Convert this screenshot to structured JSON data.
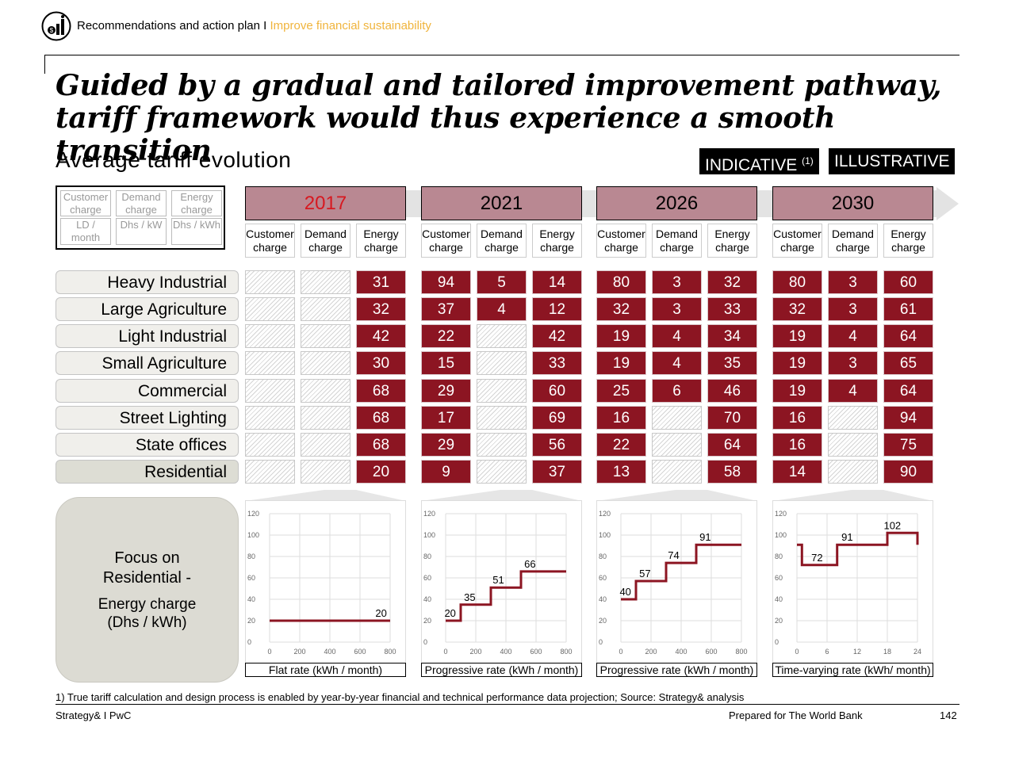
{
  "header": {
    "section": "Recommendations and action plan",
    "separator": "I",
    "topic": "Improve financial sustainability"
  },
  "headline": "Guided by a gradual and tailored improvement pathway, tariff framework would thus experience a smooth transition",
  "subtitle": "Average tariff evolution",
  "tags": {
    "indicative": "INDICATIVE",
    "indicative_note": "(1)",
    "illustrative": "ILLUSTRATIVE"
  },
  "legend": {
    "columns": [
      {
        "name": "Customer charge",
        "unit": "LD / month"
      },
      {
        "name": "Demand charge",
        "unit": "Dhs / kW"
      },
      {
        "name": "Energy charge",
        "unit": "Dhs / kWh"
      }
    ]
  },
  "column_headers": [
    "Customer charge",
    "Demand charge",
    "Energy charge"
  ],
  "colors": {
    "accent": "#8c1522",
    "year_band": "#b98892",
    "highlight_year": "#d71920",
    "header_accent": "#f0b43c"
  },
  "chart_data": [
    {
      "type": "table",
      "title": "Average tariff evolution",
      "years": [
        "2017",
        "2021",
        "2026",
        "2030"
      ],
      "highlighted_year": "2017",
      "categories": [
        "Heavy Industrial",
        "Large Agriculture",
        "Light Industrial",
        "Small Agriculture",
        "Commercial",
        "Street Lighting",
        "State offices",
        "Residential"
      ],
      "highlighted_category": "Residential",
      "values": {
        "2017": [
          [
            null,
            null,
            31
          ],
          [
            null,
            null,
            32
          ],
          [
            null,
            null,
            42
          ],
          [
            null,
            null,
            30
          ],
          [
            null,
            null,
            68
          ],
          [
            null,
            null,
            68
          ],
          [
            null,
            null,
            68
          ],
          [
            null,
            null,
            20
          ]
        ],
        "2021": [
          [
            94,
            5,
            14
          ],
          [
            37,
            4,
            12
          ],
          [
            22,
            null,
            42
          ],
          [
            15,
            null,
            33
          ],
          [
            29,
            null,
            60
          ],
          [
            17,
            null,
            69
          ],
          [
            29,
            null,
            56
          ],
          [
            9,
            null,
            37
          ]
        ],
        "2026": [
          [
            80,
            3,
            32
          ],
          [
            32,
            3,
            33
          ],
          [
            19,
            4,
            34
          ],
          [
            19,
            4,
            35
          ],
          [
            25,
            6,
            46
          ],
          [
            16,
            null,
            70
          ],
          [
            22,
            null,
            64
          ],
          [
            13,
            null,
            58
          ]
        ],
        "2030": [
          [
            80,
            3,
            60
          ],
          [
            32,
            3,
            61
          ],
          [
            19,
            4,
            64
          ],
          [
            19,
            3,
            65
          ],
          [
            19,
            4,
            64
          ],
          [
            16,
            null,
            94
          ],
          [
            16,
            null,
            75
          ],
          [
            14,
            null,
            90
          ]
        ]
      }
    },
    {
      "type": "line",
      "step": true,
      "year": "2017",
      "xlabel": "Flat rate (kWh / month)",
      "xlim": [
        0,
        800
      ],
      "xticks": [
        0,
        200,
        400,
        600,
        800
      ],
      "ylim": [
        0,
        120
      ],
      "yticks": [
        0,
        20,
        40,
        60,
        80,
        100,
        120
      ],
      "x": [
        0,
        800
      ],
      "y": [
        20,
        20
      ],
      "labels": [
        {
          "x": 740,
          "value": 20
        }
      ]
    },
    {
      "type": "line",
      "step": true,
      "year": "2021",
      "xlabel": "Progressive rate (kWh / month)",
      "xlim": [
        0,
        800
      ],
      "xticks": [
        0,
        200,
        400,
        600,
        800
      ],
      "ylim": [
        0,
        120
      ],
      "yticks": [
        0,
        20,
        40,
        60,
        80,
        100,
        120
      ],
      "x": [
        0,
        100,
        100,
        300,
        300,
        500,
        500,
        800
      ],
      "y": [
        20,
        20,
        35,
        35,
        51,
        51,
        66,
        66
      ],
      "labels": [
        {
          "x": 30,
          "value": 20
        },
        {
          "x": 160,
          "value": 35
        },
        {
          "x": 350,
          "value": 51
        },
        {
          "x": 560,
          "value": 66
        }
      ]
    },
    {
      "type": "line",
      "step": true,
      "year": "2026",
      "xlabel": "Progressive rate (kWh / month)",
      "xlim": [
        0,
        800
      ],
      "xticks": [
        0,
        200,
        400,
        600,
        800
      ],
      "ylim": [
        0,
        120
      ],
      "yticks": [
        0,
        20,
        40,
        60,
        80,
        100,
        120
      ],
      "x": [
        0,
        100,
        100,
        300,
        300,
        500,
        500,
        800
      ],
      "y": [
        40,
        40,
        57,
        57,
        74,
        74,
        91,
        91
      ],
      "labels": [
        {
          "x": 30,
          "value": 40
        },
        {
          "x": 160,
          "value": 57
        },
        {
          "x": 350,
          "value": 74
        },
        {
          "x": 560,
          "value": 91
        }
      ]
    },
    {
      "type": "line",
      "step": true,
      "year": "2030",
      "xlabel": "Time-varying rate (kWh/ month)",
      "xlim": [
        0,
        24
      ],
      "xticks": [
        0,
        6,
        12,
        18,
        24
      ],
      "ylim": [
        0,
        120
      ],
      "yticks": [
        0,
        20,
        40,
        60,
        80,
        100,
        120
      ],
      "x": [
        0,
        1,
        1,
        8,
        8,
        18,
        18,
        24,
        24
      ],
      "y": [
        91,
        91,
        72,
        72,
        91,
        91,
        102,
        102,
        91
      ],
      "labels": [
        {
          "x": 4,
          "value": 72
        },
        {
          "x": 10,
          "value": 91
        },
        {
          "x": 19,
          "value": 102
        }
      ]
    }
  ],
  "focus": {
    "line1": "Focus on",
    "line2": "Residential -",
    "line3": "Energy charge",
    "line4": "(Dhs / kWh)"
  },
  "footnote": "1) True tariff calculation and design process is enabled by year-by-year financial and technical performance data projection; Source: Strategy& analysis",
  "footer": {
    "left": "Strategy& I PwC",
    "right": "Prepared for The World Bank",
    "page": "142"
  }
}
